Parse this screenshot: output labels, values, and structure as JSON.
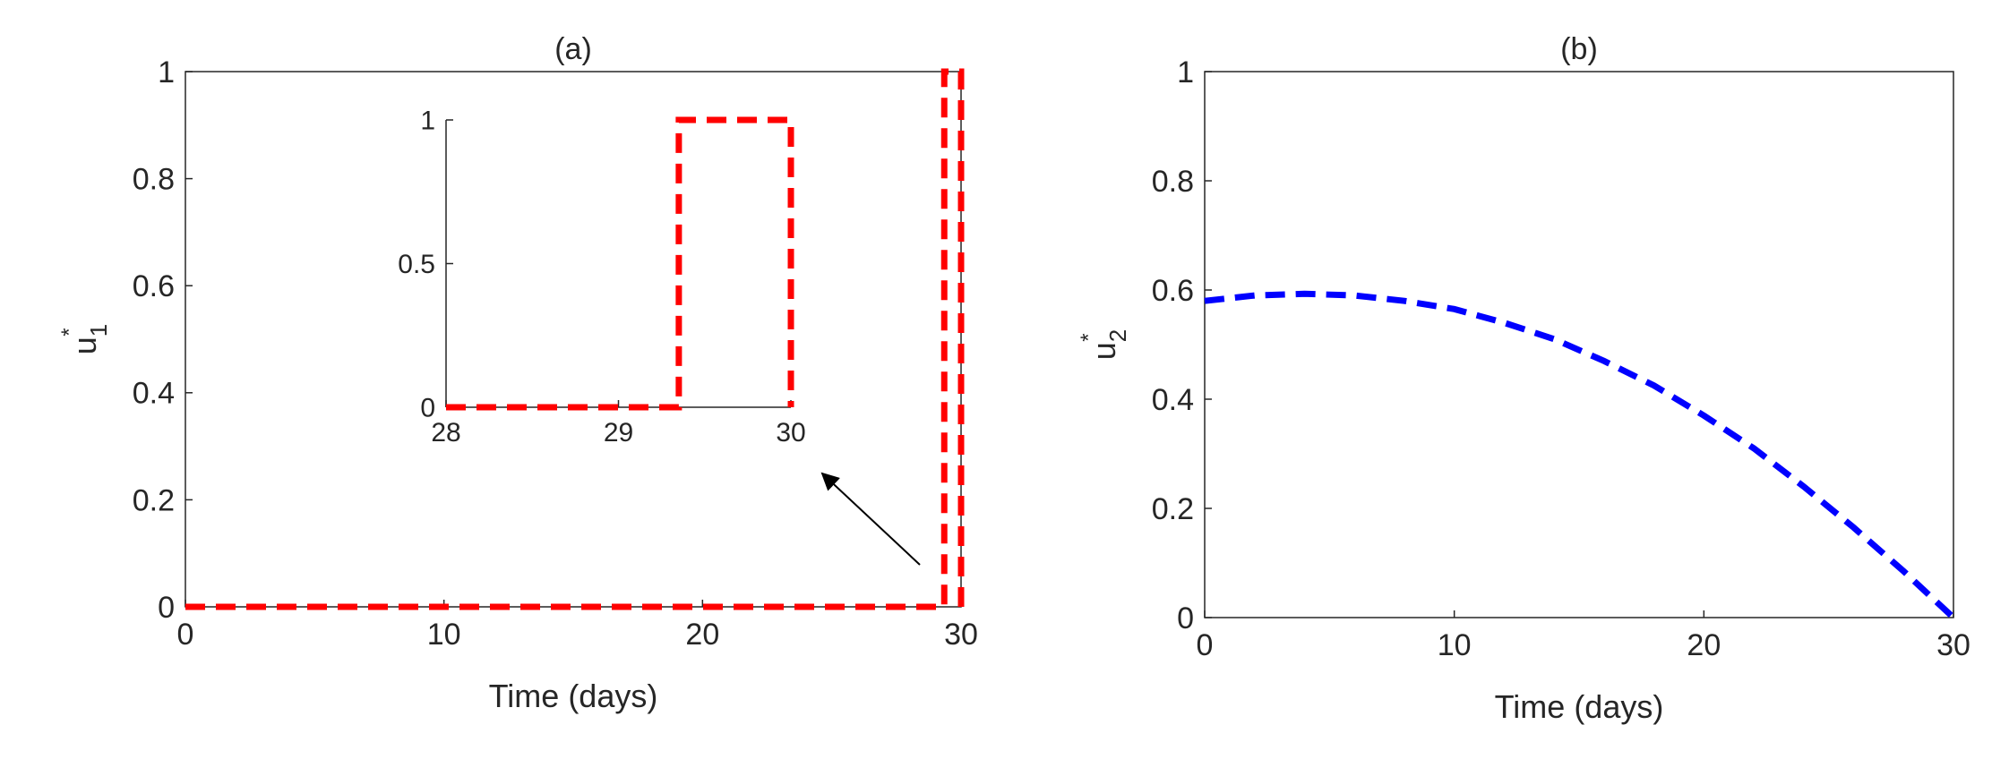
{
  "chart_data": [
    {
      "type": "line",
      "title": "(a)",
      "xlabel": "Time (days)",
      "ylabel": {
        "text": "u",
        "sub": "1",
        "sup": "*"
      },
      "series": [
        {
          "color": "#ff0000",
          "x": [
            0,
            29.35,
            29.35,
            30,
            30
          ],
          "values": [
            0,
            0,
            1,
            1,
            0
          ]
        }
      ],
      "xlim": [
        0,
        30
      ],
      "ylim": [
        0,
        1
      ],
      "xticks": [
        0,
        10,
        20,
        30
      ],
      "yticks": [
        0,
        0.2,
        0.4,
        0.6,
        0.8,
        1
      ],
      "box": true
    },
    {
      "type": "line",
      "series": [
        {
          "color": "#ff0000",
          "x": [
            28,
            29.35,
            29.35,
            30,
            30
          ],
          "values": [
            0,
            0,
            1,
            1,
            0
          ]
        }
      ],
      "xlim": [
        28,
        30
      ],
      "ylim": [
        0,
        1
      ],
      "xticks": [
        28,
        29,
        30
      ],
      "yticks": [
        0,
        0.5,
        1
      ],
      "box": false
    },
    {
      "type": "line",
      "title": "(b)",
      "xlabel": "Time (days)",
      "ylabel": {
        "text": "u",
        "sub": "2",
        "sup": "*"
      },
      "series": [
        {
          "color": "#0000ff",
          "x": [
            0,
            2,
            4,
            6,
            8,
            10,
            12,
            14,
            16,
            18,
            20,
            22,
            24,
            26,
            28,
            30
          ],
          "values": [
            0.58,
            0.59,
            0.593,
            0.59,
            0.58,
            0.565,
            0.54,
            0.51,
            0.47,
            0.425,
            0.37,
            0.31,
            0.24,
            0.165,
            0.085,
            0
          ]
        }
      ],
      "xlim": [
        0,
        30
      ],
      "ylim": [
        0,
        1
      ],
      "xticks": [
        0,
        10,
        20,
        30
      ],
      "yticks": [
        0,
        0.2,
        0.4,
        0.6,
        0.8,
        1
      ],
      "box": true
    }
  ]
}
